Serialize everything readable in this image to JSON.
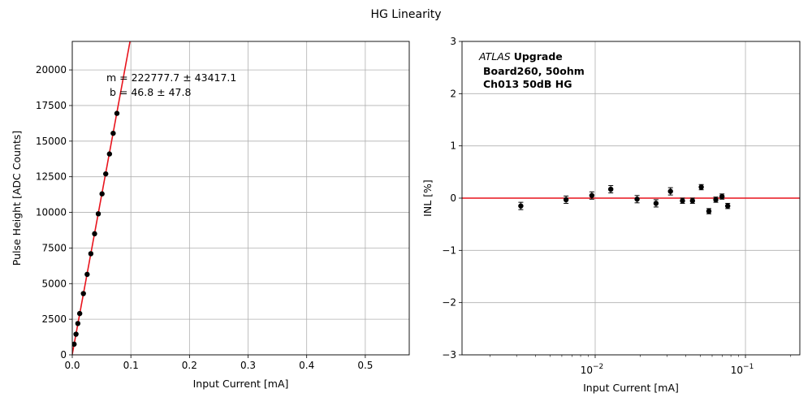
{
  "figure": {
    "title": "HG Linearity"
  },
  "chart_data": [
    {
      "type": "scatter",
      "title": "",
      "xlabel": "Input Current [mA]",
      "ylabel": "Pulse Height [ADC Counts]",
      "xlim": [
        0,
        0.575
      ],
      "ylim": [
        0,
        22000
      ],
      "xscale": "linear",
      "grid": true,
      "xticks": [
        "0.0",
        "0.1",
        "0.2",
        "0.3",
        "0.4",
        "0.5"
      ],
      "yticks": [
        "0",
        "2500",
        "5000",
        "7500",
        "10000",
        "12500",
        "15000",
        "17500",
        "20000"
      ],
      "annotation": [
        "m = 222777.7 ± 43417.1",
        "b = 46.8 ± 47.8"
      ],
      "fit": {
        "slope": 222777.7,
        "intercept": 46.8,
        "color": "#e8141d"
      },
      "series": [
        {
          "x": [
            0.0032,
            0.0064,
            0.0095,
            0.0127,
            0.019,
            0.0254,
            0.0317,
            0.0381,
            0.0444,
            0.0508,
            0.0571,
            0.0635,
            0.0698,
            0.0762
          ],
          "y": [
            750,
            1450,
            2200,
            2900,
            4300,
            5650,
            7100,
            8500,
            9900,
            11300,
            12700,
            14100,
            15550,
            16950
          ],
          "color": "#000000"
        }
      ]
    },
    {
      "type": "scatter",
      "title": "",
      "xlabel": "Input Current [mA]",
      "ylabel": "INL [%]",
      "xlim": [
        0.0013,
        0.23
      ],
      "ylim": [
        -3,
        3
      ],
      "xscale": "log",
      "grid": true,
      "xticks": [
        "10^-2",
        "10^-1"
      ],
      "yticks": [
        "−3",
        "−2",
        "−1",
        "0",
        "1",
        "2",
        "3"
      ],
      "annotation": {
        "italic": "ATLAS",
        "bold": "Upgrade",
        "line2": "Board260, 50ohm",
        "line3": "Ch013 50dB HG"
      },
      "reference_line": {
        "y": 0,
        "color": "#e8141d"
      },
      "series": [
        {
          "x": [
            0.0032,
            0.0064,
            0.0095,
            0.0127,
            0.019,
            0.0254,
            0.0317,
            0.0381,
            0.0444,
            0.0508,
            0.0571,
            0.0635,
            0.0698,
            0.0762
          ],
          "y": [
            -0.15,
            -0.03,
            0.05,
            0.17,
            -0.02,
            -0.1,
            0.13,
            -0.05,
            -0.05,
            0.21,
            -0.25,
            -0.03,
            0.03,
            -0.15
          ],
          "err": [
            0.07,
            0.07,
            0.07,
            0.07,
            0.07,
            0.07,
            0.07,
            0.05,
            0.05,
            0.05,
            0.05,
            0.05,
            0.05,
            0.05
          ],
          "color": "#000000"
        }
      ]
    }
  ]
}
